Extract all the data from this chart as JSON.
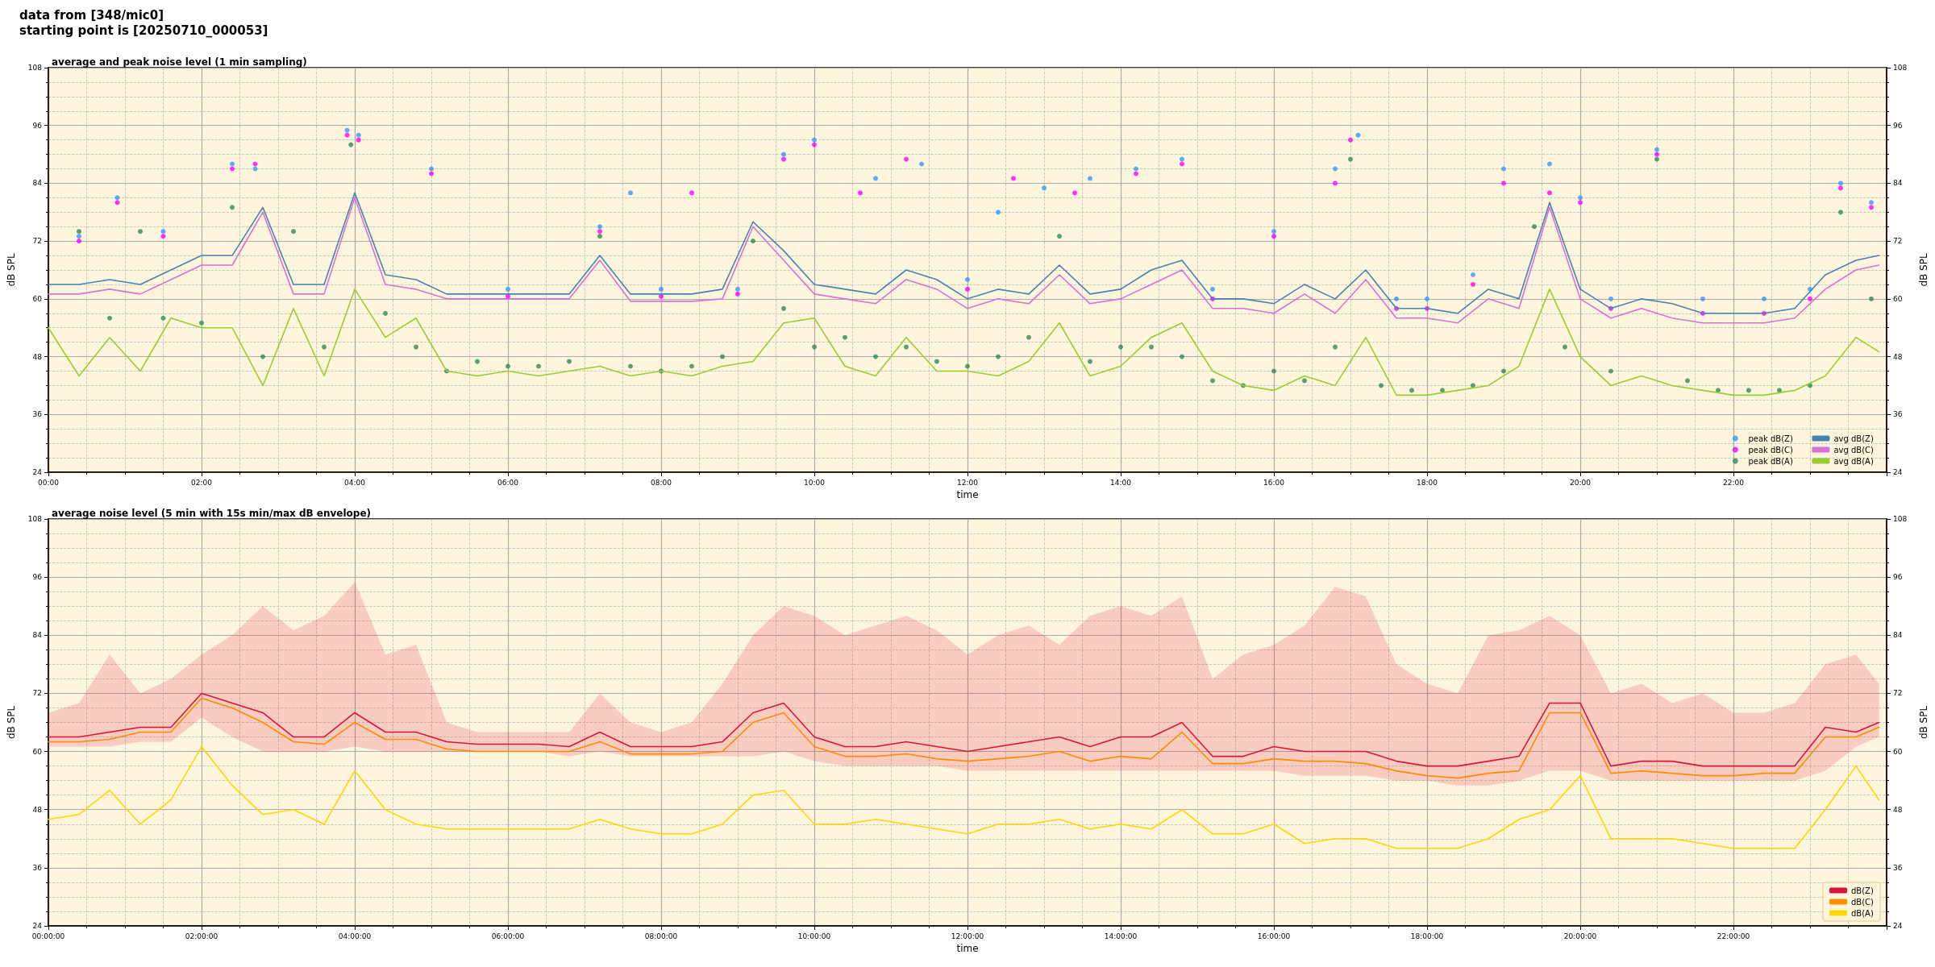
{
  "chart_data": [
    {
      "type": "line",
      "title": "average and peak noise level (1 min sampling)",
      "xlabel": "time",
      "ylabel": "dB SPL",
      "y2label": "dB SPL",
      "annotations": [
        "data from [348/mic0]",
        "starting point is [20250710_000053]"
      ],
      "x": [
        0,
        0.4,
        0.8,
        1.2,
        1.6,
        2.0,
        2.4,
        2.8,
        3.2,
        3.6,
        4.0,
        4.4,
        4.8,
        5.2,
        5.6,
        6.0,
        6.4,
        6.8,
        7.2,
        7.6,
        8.0,
        8.4,
        8.8,
        9.2,
        9.6,
        10.0,
        10.4,
        10.8,
        11.2,
        11.6,
        12.0,
        12.4,
        12.8,
        13.2,
        13.6,
        14.0,
        14.4,
        14.8,
        15.2,
        15.6,
        16.0,
        16.4,
        16.8,
        17.2,
        17.6,
        18.0,
        18.4,
        18.8,
        19.2,
        19.6,
        20.0,
        20.4,
        20.8,
        21.2,
        21.6,
        22.0,
        22.4,
        22.8,
        23.2,
        23.6,
        23.9
      ],
      "series": [
        {
          "name": "peak dB(Z)",
          "type": "scatter",
          "marker": "circle",
          "color": "#3399ff",
          "x": [
            0.4,
            0.9,
            1.5,
            2.4,
            2.7,
            3.9,
            4.05,
            5.0,
            6.0,
            7.2,
            7.6,
            8.0,
            9.0,
            9.6,
            10.0,
            10.8,
            11.4,
            12.0,
            12.4,
            13.0,
            13.6,
            14.2,
            14.8,
            15.2,
            16.0,
            16.8,
            17.1,
            17.6,
            18.0,
            18.6,
            19.0,
            19.6,
            20.0,
            20.4,
            21.0,
            21.6,
            22.4,
            23.0,
            23.4,
            23.8
          ],
          "values": [
            73,
            81,
            74,
            88,
            87,
            95,
            94,
            87,
            62,
            75,
            82,
            62,
            62,
            90,
            93,
            85,
            88,
            64,
            78,
            83,
            85,
            87,
            89,
            62,
            74,
            87,
            94,
            60,
            60,
            65,
            87,
            88,
            81,
            60,
            91,
            60,
            60,
            62,
            84,
            80
          ]
        },
        {
          "name": "peak dB(C)",
          "type": "scatter",
          "marker": "circle",
          "color": "#ff00ff",
          "x": [
            0.4,
            0.9,
            1.5,
            2.4,
            2.7,
            3.9,
            4.05,
            5.0,
            6.0,
            7.2,
            8.0,
            8.4,
            9.0,
            9.6,
            10.0,
            10.6,
            11.2,
            12.0,
            12.6,
            13.4,
            14.2,
            14.8,
            15.2,
            16.0,
            16.8,
            17.0,
            17.6,
            18.0,
            18.6,
            19.0,
            19.6,
            20.0,
            20.4,
            21.0,
            21.6,
            22.4,
            23.0,
            23.4,
            23.8
          ],
          "values": [
            72,
            80,
            73,
            87,
            88,
            94,
            93,
            86,
            60.5,
            74,
            60.5,
            82,
            61,
            89,
            92,
            82,
            89,
            62,
            85,
            82,
            86,
            88,
            60,
            73,
            84,
            93,
            58,
            58,
            63,
            84,
            82,
            80,
            58,
            90,
            57,
            57,
            60,
            83,
            79
          ]
        },
        {
          "name": "peak dB(A)",
          "type": "scatter",
          "marker": "circle",
          "color": "#2e8b57",
          "x": [
            0.4,
            0.8,
            1.2,
            1.5,
            2.0,
            2.4,
            2.8,
            3.2,
            3.6,
            3.95,
            4.4,
            4.8,
            5.2,
            5.6,
            6.0,
            6.4,
            6.8,
            7.2,
            7.6,
            8.0,
            8.4,
            8.8,
            9.2,
            9.6,
            10.0,
            10.4,
            10.8,
            11.2,
            11.6,
            12.0,
            12.4,
            12.8,
            13.2,
            13.6,
            14.0,
            14.4,
            14.8,
            15.2,
            15.6,
            16.0,
            16.4,
            16.8,
            17.0,
            17.4,
            17.8,
            18.2,
            18.6,
            19.0,
            19.4,
            19.8,
            20.4,
            21.0,
            21.4,
            21.8,
            22.2,
            22.6,
            23.0,
            23.4,
            23.8
          ],
          "values": [
            74,
            56,
            74,
            56,
            55,
            79,
            48,
            74,
            50,
            92,
            57,
            50,
            45,
            47,
            46,
            46,
            47,
            73,
            46,
            45,
            46,
            48,
            72,
            58,
            50,
            52,
            48,
            50,
            47,
            46,
            48,
            52,
            73,
            47,
            50,
            50,
            48,
            43,
            42,
            45,
            43,
            50,
            89,
            42,
            41,
            41,
            42,
            45,
            75,
            50,
            45,
            89,
            43,
            41,
            41,
            41,
            42,
            78,
            60
          ]
        },
        {
          "name": "avg dB(Z)",
          "type": "line",
          "marker": "none",
          "color": "#4682b4",
          "values": [
            63,
            63,
            64,
            63,
            66,
            69,
            69,
            79,
            63,
            63,
            82,
            65,
            64,
            61,
            61,
            61,
            61,
            61,
            69,
            61,
            61,
            61,
            62,
            76,
            70,
            63,
            62,
            61,
            66,
            64,
            60,
            62,
            61,
            67,
            61,
            62,
            66,
            68,
            60,
            60,
            59,
            63,
            60,
            66,
            58,
            58,
            57,
            62,
            60,
            80,
            62,
            58,
            60,
            59,
            57,
            57,
            57,
            58,
            65,
            68,
            69
          ]
        },
        {
          "name": "avg dB(C)",
          "type": "line",
          "marker": "none",
          "color": "#da70d6",
          "values": [
            61,
            61,
            62,
            61,
            64,
            67,
            67,
            78,
            61,
            61,
            81,
            63,
            62,
            60,
            60,
            60,
            60,
            60,
            68,
            59.5,
            59.5,
            59.5,
            60,
            75,
            68,
            61,
            60,
            59,
            64,
            62,
            58,
            60,
            59,
            65,
            59,
            60,
            63,
            66,
            58,
            58,
            57,
            61,
            57,
            64,
            56,
            56,
            55,
            60,
            58,
            79,
            60,
            56,
            58,
            56,
            55,
            55,
            55,
            56,
            62,
            66,
            67
          ]
        },
        {
          "name": "avg dB(A)",
          "type": "line",
          "marker": "none",
          "color": "#9acd32",
          "values": [
            54,
            44,
            52,
            45,
            56,
            54,
            54,
            42,
            58,
            44,
            62,
            52,
            56,
            45,
            44,
            45,
            44,
            45,
            46,
            44,
            45,
            44,
            46,
            47,
            55,
            56,
            46,
            44,
            52,
            45,
            45,
            44,
            47,
            55,
            44,
            46,
            52,
            55,
            45,
            42,
            41,
            44,
            42,
            52,
            40,
            40,
            41,
            42,
            46,
            62,
            48,
            42,
            44,
            42,
            41,
            40,
            40,
            41,
            44,
            52,
            49
          ]
        }
      ],
      "xlim": [
        0,
        24
      ],
      "xticks": [
        {
          "value": 0,
          "label": "00:00"
        },
        {
          "value": 2,
          "label": "02:00"
        },
        {
          "value": 4,
          "label": "04:00"
        },
        {
          "value": 6,
          "label": "06:00"
        },
        {
          "value": 8,
          "label": "08:00"
        },
        {
          "value": 10,
          "label": "10:00"
        },
        {
          "value": 12,
          "label": "12:00"
        },
        {
          "value": 14,
          "label": "14:00"
        },
        {
          "value": 16,
          "label": "16:00"
        },
        {
          "value": 18,
          "label": "18:00"
        },
        {
          "value": 20,
          "label": "20:00"
        },
        {
          "value": 22,
          "label": "22:00"
        }
      ],
      "ylim": [
        24,
        108
      ],
      "yticks": [
        24,
        36,
        48,
        60,
        72,
        84,
        96,
        108
      ],
      "y2lim": [
        24,
        108
      ],
      "y2ticks": [
        24,
        36,
        48,
        60,
        72,
        84,
        96,
        108
      ],
      "grid": true,
      "legend": "bottom right",
      "line_style": "solid"
    },
    {
      "type": "line",
      "title": "average noise level (5 min with 15s min/max dB envelope)",
      "xlabel": "time",
      "ylabel": "dB SPL",
      "y2label": "dB SPL",
      "x": [
        0,
        0.4,
        0.8,
        1.2,
        1.6,
        2.0,
        2.4,
        2.8,
        3.2,
        3.6,
        4.0,
        4.4,
        4.8,
        5.2,
        5.6,
        6.0,
        6.4,
        6.8,
        7.2,
        7.6,
        8.0,
        8.4,
        8.8,
        9.2,
        9.6,
        10.0,
        10.4,
        10.8,
        11.2,
        11.6,
        12.0,
        12.4,
        12.8,
        13.2,
        13.6,
        14.0,
        14.4,
        14.8,
        15.2,
        15.6,
        16.0,
        16.4,
        16.8,
        17.2,
        17.6,
        18.0,
        18.4,
        18.8,
        19.2,
        19.6,
        20.0,
        20.4,
        20.8,
        21.2,
        21.6,
        22.0,
        22.4,
        22.8,
        23.2,
        23.6,
        23.9
      ],
      "series": [
        {
          "name": "dB(Z)",
          "type": "line",
          "marker": "none",
          "color": "#dc143c",
          "values": [
            63,
            63,
            64,
            65,
            65,
            72,
            70,
            68,
            63,
            63,
            68,
            64,
            64,
            62,
            61.5,
            61.5,
            61.5,
            61,
            64,
            61,
            61,
            61,
            62,
            68,
            70,
            63,
            61,
            61,
            62,
            61,
            60,
            61,
            62,
            63,
            61,
            63,
            63,
            66,
            59,
            59,
            61,
            60,
            60,
            60,
            58,
            57,
            57,
            58,
            59,
            70,
            70,
            57,
            58,
            58,
            57,
            57,
            57,
            57,
            65,
            64,
            66
          ],
          "lower": [
            61,
            61,
            61,
            62,
            62,
            67,
            63,
            60,
            60,
            60,
            61,
            60,
            60,
            60,
            60,
            60,
            60,
            59,
            60,
            59,
            59,
            59,
            59,
            59,
            60,
            58,
            57,
            57,
            57,
            57,
            56,
            56,
            56,
            56,
            56,
            56,
            56,
            56,
            56,
            56,
            56,
            55,
            55,
            55,
            54,
            54,
            53,
            53,
            54,
            56,
            56,
            54,
            54,
            54,
            54,
            54,
            54,
            54,
            56,
            61,
            63
          ],
          "upper": [
            68,
            70,
            80,
            72,
            75,
            80,
            84,
            90,
            85,
            88,
            95,
            80,
            82,
            66,
            64,
            64,
            64,
            64,
            72,
            66,
            64,
            66,
            74,
            84,
            90,
            88,
            84,
            86,
            88,
            85,
            80,
            84,
            86,
            82,
            88,
            90,
            88,
            92,
            75,
            80,
            82,
            86,
            94,
            92,
            78,
            74,
            72,
            84,
            85,
            88,
            84,
            72,
            74,
            70,
            72,
            68,
            68,
            70,
            78,
            80,
            74
          ]
        },
        {
          "name": "dB(C)",
          "type": "line",
          "marker": "none",
          "color": "#ff8c00",
          "values": [
            62,
            62,
            62.5,
            64,
            64,
            71,
            69,
            66,
            62,
            61.5,
            66,
            62.5,
            62.5,
            60.5,
            60,
            60,
            60,
            60,
            62,
            59.5,
            59.5,
            59.5,
            60,
            66,
            68,
            61,
            59,
            59,
            59.5,
            58.5,
            58,
            58.5,
            59,
            60,
            58,
            59,
            58.5,
            64,
            57.5,
            57.5,
            58.5,
            58,
            58,
            57.5,
            56,
            55,
            54.5,
            55.5,
            56,
            68,
            68,
            55.5,
            56,
            55.5,
            55,
            55,
            55.5,
            55.5,
            63,
            63,
            65
          ]
        },
        {
          "name": "dB(A)",
          "type": "line",
          "marker": "none",
          "color": "#ffd700",
          "values": [
            46,
            47,
            52,
            45,
            50,
            61,
            53,
            47,
            48,
            45,
            56,
            48,
            45,
            44,
            44,
            44,
            44,
            44,
            46,
            44,
            43,
            43,
            45,
            51,
            52,
            45,
            45,
            46,
            45,
            44,
            43,
            45,
            45,
            46,
            44,
            45,
            44,
            48,
            43,
            43,
            45,
            41,
            42,
            42,
            40,
            40,
            40,
            42,
            46,
            48,
            55,
            42,
            42,
            42,
            41,
            40,
            40,
            40,
            48,
            57,
            50
          ]
        }
      ],
      "xlim": [
        0,
        24
      ],
      "xticks": [
        {
          "value": 0,
          "label": "00:00:00"
        },
        {
          "value": 2,
          "label": "02:00:00"
        },
        {
          "value": 4,
          "label": "04:00:00"
        },
        {
          "value": 6,
          "label": "06:00:00"
        },
        {
          "value": 8,
          "label": "08:00:00"
        },
        {
          "value": 10,
          "label": "10:00:00"
        },
        {
          "value": 12,
          "label": "12:00:00"
        },
        {
          "value": 14,
          "label": "14:00:00"
        },
        {
          "value": 16,
          "label": "16:00:00"
        },
        {
          "value": 18,
          "label": "18:00:00"
        },
        {
          "value": 20,
          "label": "20:00:00"
        },
        {
          "value": 22,
          "label": "22:00:00"
        }
      ],
      "ylim": [
        24,
        108
      ],
      "yticks": [
        24,
        36,
        48,
        60,
        72,
        84,
        96,
        108
      ],
      "y2lim": [
        24,
        108
      ],
      "y2ticks": [
        24,
        36,
        48,
        60,
        72,
        84,
        96,
        108
      ],
      "grid": true,
      "legend": "bottom right",
      "line_style": "solid"
    }
  ]
}
